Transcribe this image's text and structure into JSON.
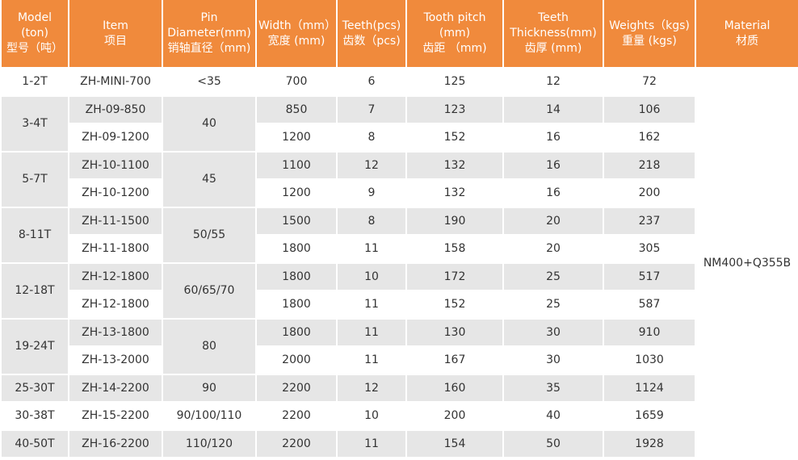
{
  "header": {
    "model": [
      "Model",
      "(ton)",
      "型号（吨）"
    ],
    "item": [
      "Item",
      "项目"
    ],
    "pin": [
      "Pin",
      "Diameter(mm)",
      "销轴直径（mm)"
    ],
    "width": [
      "Width（mm）",
      "宽度 (mm)"
    ],
    "teeth": [
      "Teeth(pcs)",
      "齿数（pcs)"
    ],
    "pitch": [
      "Tooth pitch",
      "(mm)",
      "齿距 （mm)"
    ],
    "thick": [
      "Teeth",
      "Thickness(mm)",
      "齿厚 (mm)"
    ],
    "weight": [
      "Weights（kgs)",
      "重量 (kgs)"
    ],
    "material": [
      "Material",
      "材质"
    ]
  },
  "material_value": "NM400+Q355B",
  "groups": [
    {
      "model": "1-2T",
      "pin": "<35",
      "rows": [
        {
          "item": "ZH-MINI-700",
          "width": "700",
          "teeth": "6",
          "pitch": "125",
          "thick": "12",
          "weight": "72"
        }
      ]
    },
    {
      "model": "3-4T",
      "pin": "40",
      "rows": [
        {
          "item": "ZH-09-850",
          "width": "850",
          "teeth": "7",
          "pitch": "123",
          "thick": "14",
          "weight": "106"
        },
        {
          "item": "ZH-09-1200",
          "width": "1200",
          "teeth": "8",
          "pitch": "152",
          "thick": "16",
          "weight": "162"
        }
      ]
    },
    {
      "model": "5-7T",
      "pin": "45",
      "rows": [
        {
          "item": "ZH-10-1100",
          "width": "1100",
          "teeth": "12",
          "pitch": "132",
          "thick": "16",
          "weight": "218"
        },
        {
          "item": "ZH-10-1200",
          "width": "1200",
          "teeth": "9",
          "pitch": "132",
          "thick": "16",
          "weight": "200"
        }
      ]
    },
    {
      "model": "8-11T",
      "pin": "50/55",
      "rows": [
        {
          "item": "ZH-11-1500",
          "width": "1500",
          "teeth": "8",
          "pitch": "190",
          "thick": "20",
          "weight": "237"
        },
        {
          "item": "ZH-11-1800",
          "width": "1800",
          "teeth": "11",
          "pitch": "158",
          "thick": "20",
          "weight": "305"
        }
      ]
    },
    {
      "model": "12-18T",
      "pin": "60/65/70",
      "rows": [
        {
          "item": "ZH-12-1800",
          "width": "1800",
          "teeth": "10",
          "pitch": "172",
          "thick": "25",
          "weight": "517"
        },
        {
          "item": "ZH-12-1800",
          "width": "1800",
          "teeth": "11",
          "pitch": "152",
          "thick": "25",
          "weight": "587"
        }
      ]
    },
    {
      "model": "19-24T",
      "pin": "80",
      "rows": [
        {
          "item": "ZH-13-1800",
          "width": "1800",
          "teeth": "11",
          "pitch": "130",
          "thick": "30",
          "weight": "910"
        },
        {
          "item": "ZH-13-2000",
          "width": "2000",
          "teeth": "11",
          "pitch": "167",
          "thick": "30",
          "weight": "1030"
        }
      ]
    },
    {
      "model": "25-30T",
      "pin": "90",
      "rows": [
        {
          "item": "ZH-14-2200",
          "width": "2200",
          "teeth": "12",
          "pitch": "160",
          "thick": "35",
          "weight": "1124"
        }
      ]
    },
    {
      "model": "30-38T",
      "pin": "90/100/110",
      "rows": [
        {
          "item": "ZH-15-2200",
          "width": "2200",
          "teeth": "10",
          "pitch": "200",
          "thick": "40",
          "weight": "1659"
        }
      ]
    },
    {
      "model": "40-50T",
      "pin": "110/120",
      "rows": [
        {
          "item": "ZH-16-2200",
          "width": "2200",
          "teeth": "11",
          "pitch": "154",
          "thick": "50",
          "weight": "1928"
        }
      ]
    }
  ]
}
